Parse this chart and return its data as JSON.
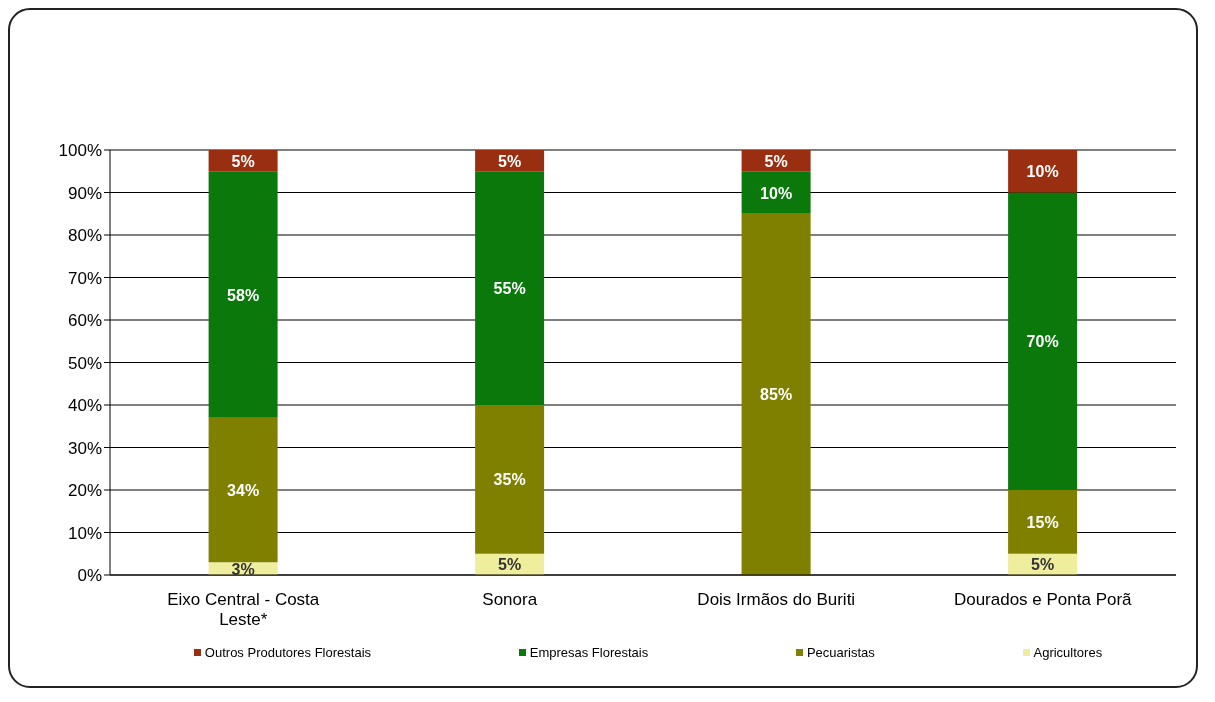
{
  "chart_data": {
    "type": "bar",
    "stacked": true,
    "categories": [
      "Eixo Central - Costa Leste*",
      "Sonora",
      "Dois Irmãos do Buriti",
      "Dourados e Ponta Porã"
    ],
    "series": [
      {
        "name": "Agricultores",
        "color": "#eeee9c",
        "values": [
          3,
          5,
          null,
          5
        ],
        "value_labels": [
          "3%",
          "5%",
          null,
          "5%"
        ]
      },
      {
        "name": "Pecuaristas",
        "color": "#808000",
        "values": [
          34,
          35,
          85,
          15
        ],
        "value_labels": [
          "34%",
          "35%",
          "85%",
          "15%"
        ]
      },
      {
        "name": "Empresas Florestais",
        "color": "#0a780a",
        "values": [
          58,
          55,
          10,
          70
        ],
        "value_labels": [
          "58%",
          "55%",
          "10%",
          "70%"
        ]
      },
      {
        "name": "Outros Produtores Florestais",
        "color": "#9a2e10",
        "values": [
          5,
          5,
          5,
          10
        ],
        "value_labels": [
          "5%",
          "5%",
          "5%",
          "10%"
        ]
      }
    ],
    "ylim": [
      0,
      100
    ],
    "yticks": [
      {
        "value": 0,
        "label": "0%"
      },
      {
        "value": 10,
        "label": "10%"
      },
      {
        "value": 20,
        "label": "20%"
      },
      {
        "value": 30,
        "label": "30%"
      },
      {
        "value": 40,
        "label": "40%"
      },
      {
        "value": 50,
        "label": "50%"
      },
      {
        "value": 60,
        "label": "60%"
      },
      {
        "value": 70,
        "label": "70%"
      },
      {
        "value": 80,
        "label": "80%"
      },
      {
        "value": 90,
        "label": "90%"
      },
      {
        "value": 100,
        "label": "100%"
      }
    ],
    "grid": "y",
    "legend": "bottom"
  }
}
